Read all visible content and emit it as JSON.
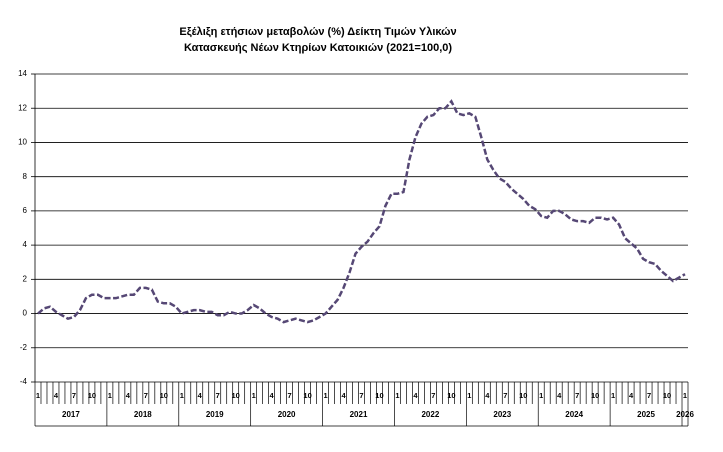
{
  "chart_data": {
    "type": "line",
    "title": [
      "Εξέλιξη ετήσιων μεταβολών (%) Δείκτη Τιμών Υλικών",
      "Κατασκευής Νέων Κτηρίων Κατοικιών (2021=100,0)"
    ],
    "categories": [
      "1",
      null,
      null,
      "4",
      null,
      null,
      "7",
      null,
      null,
      "10",
      null,
      null,
      "1",
      null,
      null,
      "4",
      null,
      null,
      "7",
      null,
      null,
      "10",
      null,
      null,
      "1",
      null,
      null,
      "4",
      null,
      null,
      "7",
      null,
      null,
      "10",
      null,
      null,
      "1",
      null,
      null,
      "4",
      null,
      null,
      "7",
      null,
      null,
      "10",
      null,
      null,
      "1",
      null,
      null,
      "4",
      null,
      null,
      "7",
      null,
      null,
      "10",
      null,
      null,
      "1",
      null,
      null,
      "4",
      null,
      null,
      "7",
      null,
      null,
      "10",
      null,
      null,
      "1",
      null,
      null,
      "4",
      null,
      null,
      "7",
      null,
      null,
      "10",
      null,
      null,
      "1",
      null,
      null,
      "4",
      null,
      null,
      "7",
      null,
      null,
      "10",
      null,
      null,
      "1",
      null,
      null,
      "4",
      null,
      null,
      "7",
      null,
      null,
      "10",
      null,
      null,
      "1"
    ],
    "years": [
      "2017",
      "2018",
      "2019",
      "2020",
      "2021",
      "2022",
      "2023",
      "2024",
      "2025",
      "2026"
    ],
    "values": [
      0.0,
      0.3,
      0.4,
      0.1,
      -0.1,
      -0.3,
      -0.2,
      0.2,
      0.9,
      1.1,
      1.1,
      0.9,
      0.9,
      0.9,
      1.0,
      1.1,
      1.1,
      1.5,
      1.5,
      1.4,
      0.7,
      0.6,
      0.6,
      0.4,
      0.0,
      0.1,
      0.2,
      0.2,
      0.1,
      0.1,
      -0.1,
      -0.1,
      0.1,
      0.0,
      0.0,
      0.2,
      0.5,
      0.3,
      0.0,
      -0.2,
      -0.3,
      -0.5,
      -0.4,
      -0.3,
      -0.4,
      -0.5,
      -0.4,
      -0.2,
      0.0,
      0.4,
      0.8,
      1.5,
      2.4,
      3.5,
      3.9,
      4.2,
      4.7,
      5.1,
      6.3,
      7.0,
      7.0,
      7.1,
      9.0,
      10.3,
      11.1,
      11.5,
      11.6,
      12.0,
      12.0,
      12.4,
      11.7,
      11.6,
      11.7,
      11.5,
      10.3,
      9.0,
      8.4,
      7.9,
      7.7,
      7.3,
      7.0,
      6.7,
      6.3,
      6.1,
      5.7,
      5.6,
      6.0,
      6.0,
      5.8,
      5.5,
      5.4,
      5.4,
      5.3,
      5.6,
      5.6,
      5.5,
      5.6,
      5.2,
      4.4,
      4.1,
      3.8,
      3.2,
      3.0,
      2.9,
      2.5,
      2.2,
      1.9,
      2.1,
      2.3
    ],
    "color": "#564875",
    "ylim": [
      -4,
      14
    ],
    "yticks": [
      -4,
      -2,
      0,
      2,
      4,
      6,
      8,
      10,
      12,
      14
    ],
    "grid": true
  }
}
